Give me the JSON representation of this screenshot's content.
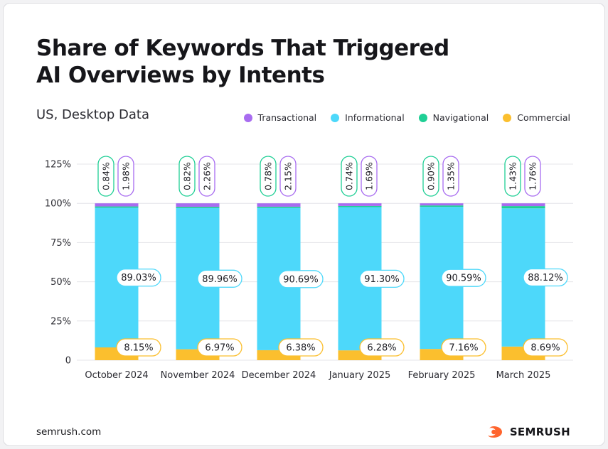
{
  "title_line1": "Share of Keywords That Triggered",
  "title_line2": "AI Overviews by Intents",
  "subtitle": "US, Desktop Data",
  "footer": {
    "source": "semrush.com",
    "brand": "SEMRUSH",
    "brand_icon": "semrush-flame-logo"
  },
  "colors": {
    "transactional": "#a86cf0",
    "informational": "#4dd8fa",
    "navigational": "#1fcf95",
    "commercial": "#fbbf2e",
    "grid": "#e4e4e8",
    "text": "#2c2c33"
  },
  "chart_data": {
    "type": "bar",
    "stacked": true,
    "categories": [
      "October 2024",
      "November 2024",
      "December 2024",
      "January 2025",
      "February 2025",
      "March 2025"
    ],
    "series": [
      {
        "name": "Transactional",
        "key": "transactional",
        "values": [
          1.98,
          2.26,
          2.15,
          1.69,
          1.35,
          1.76
        ],
        "labels": [
          "1.98%",
          "2.26%",
          "2.15%",
          "1.69%",
          "1.35%",
          "1.76%"
        ]
      },
      {
        "name": "Informational",
        "key": "informational",
        "values": [
          89.03,
          89.96,
          90.69,
          91.3,
          90.59,
          88.12
        ],
        "labels": [
          "89.03%",
          "89.96%",
          "90.69%",
          "91.30%",
          "90.59%",
          "88.12%"
        ]
      },
      {
        "name": "Navigational",
        "key": "navigational",
        "values": [
          0.84,
          0.82,
          0.78,
          0.74,
          0.9,
          1.43
        ],
        "labels": [
          "0.84%",
          "0.82%",
          "0.78%",
          "0.74%",
          "0.90%",
          "1.43%"
        ]
      },
      {
        "name": "Commercial",
        "key": "commercial",
        "values": [
          8.15,
          6.97,
          6.38,
          6.28,
          7.16,
          8.69
        ],
        "labels": [
          "8.15%",
          "6.97%",
          "6.38%",
          "6.28%",
          "7.16%",
          "8.69%"
        ]
      }
    ],
    "yticks": [
      "0",
      "25%",
      "50%",
      "75%",
      "100%",
      "125%"
    ],
    "ylim": [
      0,
      125
    ],
    "legend_position": "top-right",
    "grid": true
  }
}
